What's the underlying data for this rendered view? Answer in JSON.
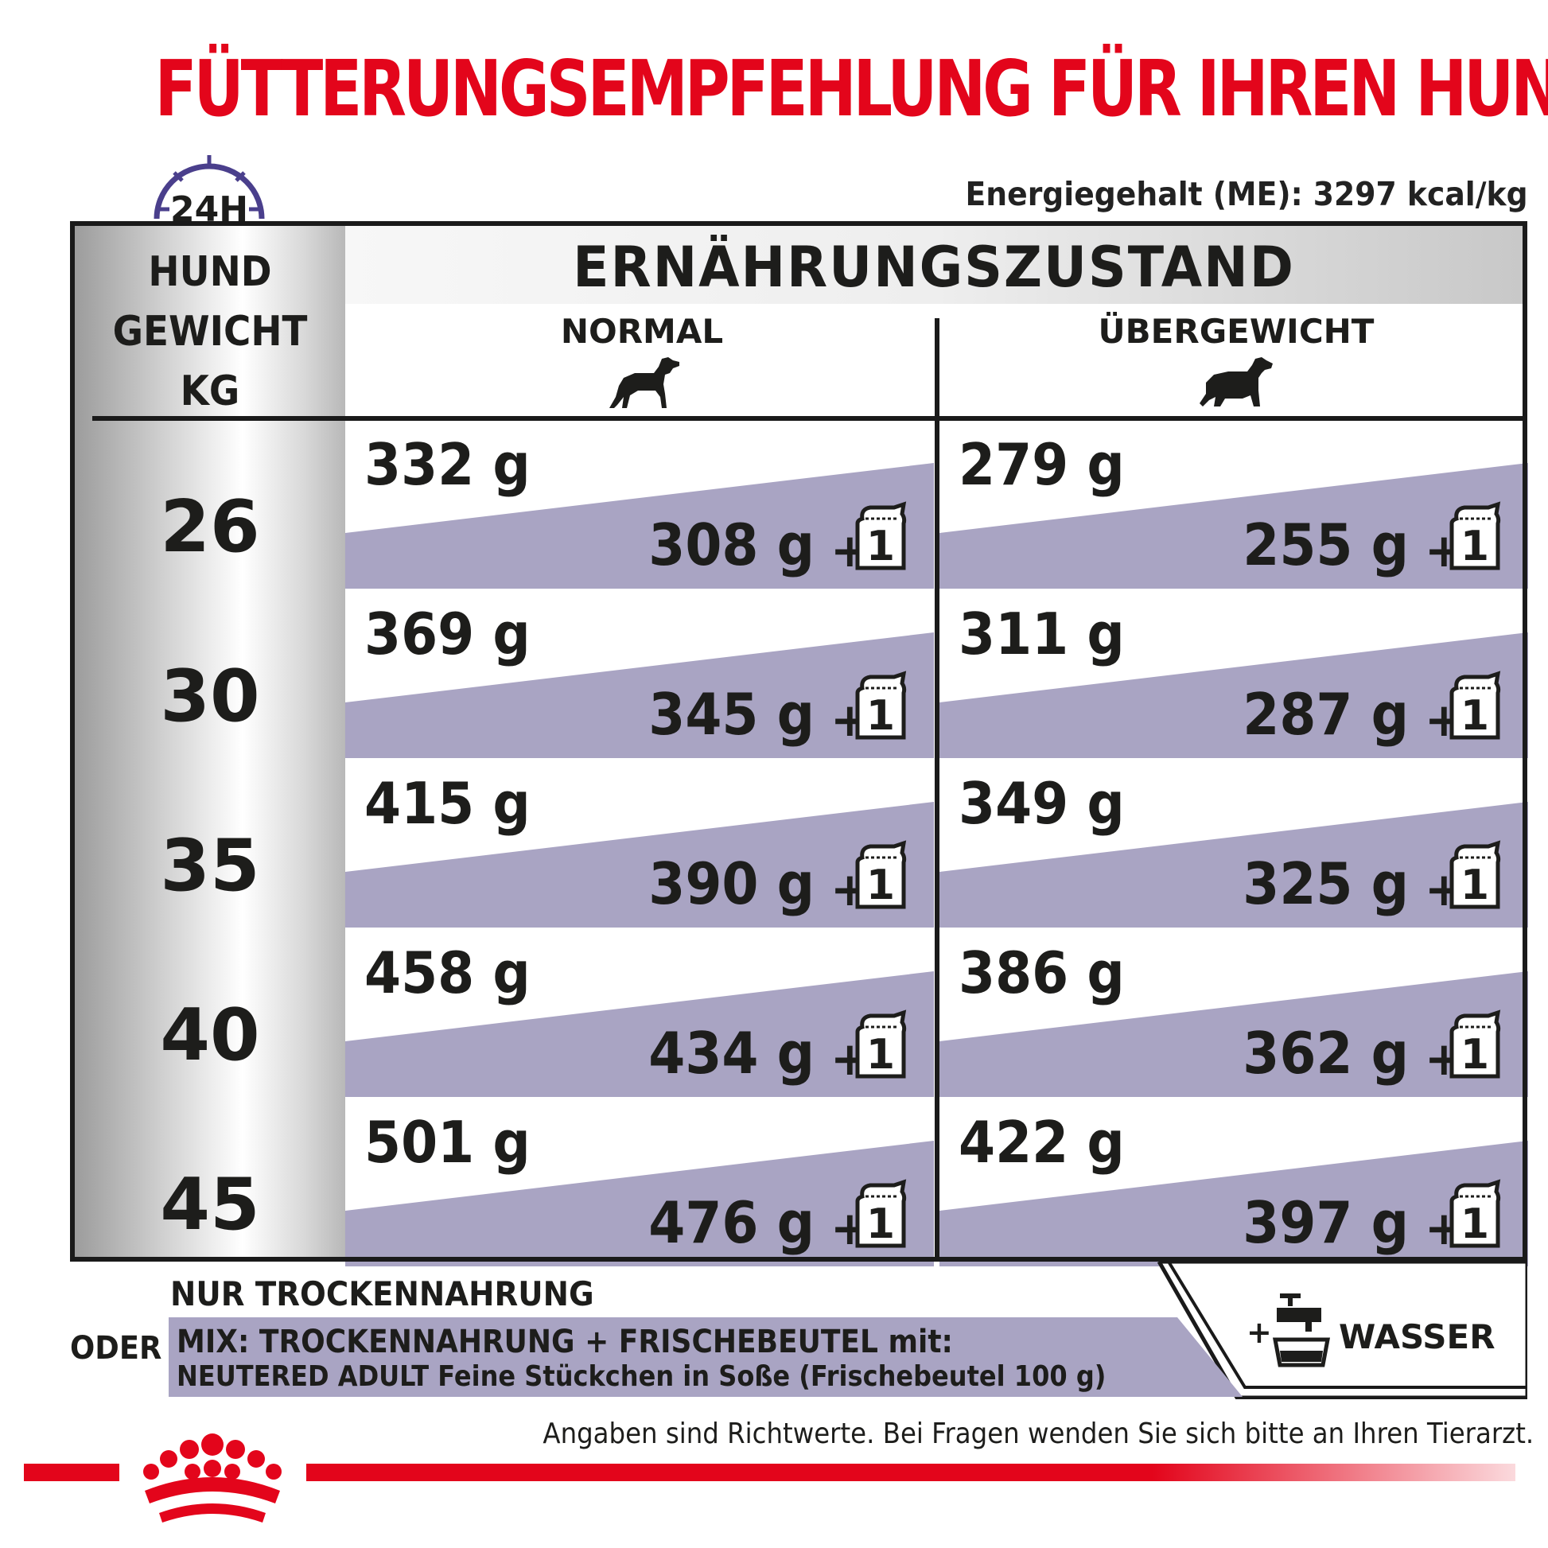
{
  "title": "FÜTTERUNGSEMPFEHLUNG FÜR IHREN HUND",
  "clock_label": "24H",
  "energy": "Energiegehalt (ME): 3297 kcal/kg",
  "header": {
    "weight_line1": "HUND",
    "weight_line2": "GEWICHT",
    "weight_line3": "KG",
    "main": "ERNÄHRUNGSZUSTAND",
    "col_normal": "NORMAL",
    "col_overweight": "ÜBERGEWICHT"
  },
  "pouch_count": "1",
  "plus_sign": "+",
  "rows": [
    {
      "kg": "26",
      "normal_dry": "332 g",
      "normal_mix": "308 g",
      "over_dry": "279 g",
      "over_mix": "255 g"
    },
    {
      "kg": "30",
      "normal_dry": "369 g",
      "normal_mix": "345 g",
      "over_dry": "311 g",
      "over_mix": "287 g"
    },
    {
      "kg": "35",
      "normal_dry": "415 g",
      "normal_mix": "390 g",
      "over_dry": "349 g",
      "over_mix": "325 g"
    },
    {
      "kg": "40",
      "normal_dry": "458 g",
      "normal_mix": "434 g",
      "over_dry": "386 g",
      "over_mix": "362 g"
    },
    {
      "kg": "45",
      "normal_dry": "501 g",
      "normal_mix": "476 g",
      "over_dry": "422 g",
      "over_mix": "397 g"
    }
  ],
  "legend": {
    "dry_only": "NUR TROCKENNAHRUNG",
    "oder": "ODER",
    "mix_line1": "MIX: TROCKENNAHRUNG + FRISCHEBEUTEL mit:",
    "mix_line2": "NEUTERED ADULT Feine Stückchen in Soße (Frischebeutel 100 g)",
    "water": "WASSER"
  },
  "disclaimer": "Angaben sind Richtwerte. Bei Fragen wenden Sie sich bitte an Ihren Tierarzt.",
  "colors": {
    "brand_red": "#e3051b",
    "band_purple": "#a9a4c3",
    "clock_purple": "#4a3f8c"
  }
}
